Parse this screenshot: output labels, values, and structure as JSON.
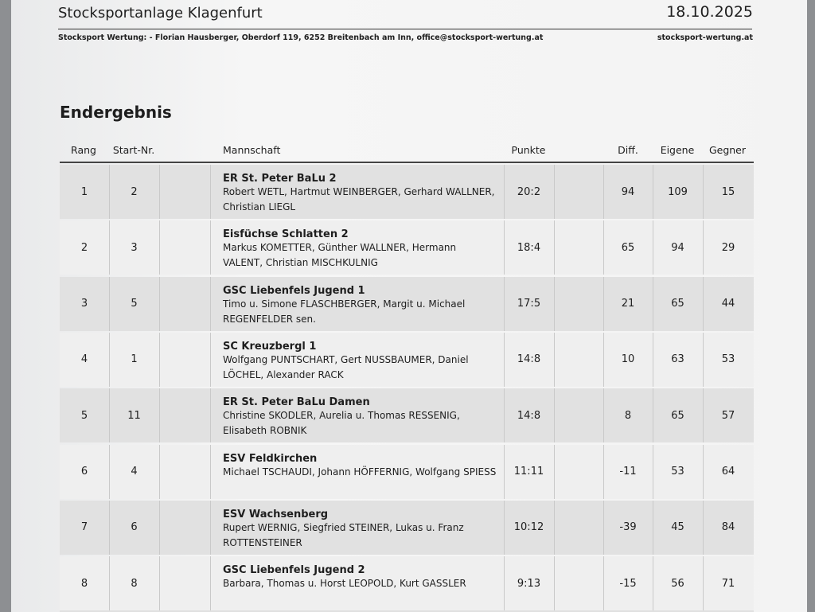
{
  "header": {
    "venue": "Stocksportanlage Klagenfurt",
    "date": "18.10.2025",
    "organizer": "Stocksport Wertung: - Florian Hausberger, Oberdorf 119, 6252 Breitenbach am Inn, office@stocksport-wertung.at",
    "website": "stocksport-wertung.at"
  },
  "section_title": "Endergebnis",
  "table": {
    "columns": [
      "Rang",
      "Start-Nr.",
      "Mannschaft",
      "Punkte",
      "Diff.",
      "Eigene",
      "Gegner"
    ],
    "rows": [
      {
        "rang": 1,
        "start": 2,
        "team": "ER St. Peter BaLu 2",
        "members": "Robert WETL, Hartmut WEINBERGER, Gerhard WALLNER, Christian LIEGL",
        "punkte": "20:2",
        "diff": 94,
        "eigene": 109,
        "gegner": 15
      },
      {
        "rang": 2,
        "start": 3,
        "team": "Eisfüchse Schlatten 2",
        "members": "Markus KOMETTER, Günther WALLNER, Hermann VALENT, Christian MISCHKULNIG",
        "punkte": "18:4",
        "diff": 65,
        "eigene": 94,
        "gegner": 29
      },
      {
        "rang": 3,
        "start": 5,
        "team": "GSC Liebenfels Jugend 1",
        "members": "Timo u. Simone FLASCHBERGER, Margit u. Michael REGENFELDER sen.",
        "punkte": "17:5",
        "diff": 21,
        "eigene": 65,
        "gegner": 44
      },
      {
        "rang": 4,
        "start": 1,
        "team": "SC Kreuzbergl 1",
        "members": "Wolfgang PUNTSCHART, Gert NUSSBAUMER, Daniel LÖCHEL, Alexander RACK",
        "punkte": "14:8",
        "diff": 10,
        "eigene": 63,
        "gegner": 53
      },
      {
        "rang": 5,
        "start": 11,
        "team": "ER St. Peter BaLu Damen",
        "members": "Christine SKODLER, Aurelia u. Thomas RESSENIG, Elisabeth ROBNIK",
        "punkte": "14:8",
        "diff": 8,
        "eigene": 65,
        "gegner": 57
      },
      {
        "rang": 6,
        "start": 4,
        "team": "ESV Feldkirchen",
        "members": "Michael TSCHAUDI, Johann HÖFFERNIG, Wolfgang SPIESS",
        "punkte": "11:11",
        "diff": -11,
        "eigene": 53,
        "gegner": 64
      },
      {
        "rang": 7,
        "start": 6,
        "team": "ESV Wachsenberg",
        "members": "Rupert WERNIG, Siegfried STEINER, Lukas u. Franz ROTTENSTEINER",
        "punkte": "10:12",
        "diff": -39,
        "eigene": 45,
        "gegner": 84
      },
      {
        "rang": 8,
        "start": 8,
        "team": "GSC Liebenfels Jugend 2",
        "members": "Barbara, Thomas u. Horst LEOPOLD, Kurt GASSLER",
        "punkte": "9:13",
        "diff": -15,
        "eigene": 56,
        "gegner": 71
      }
    ]
  }
}
